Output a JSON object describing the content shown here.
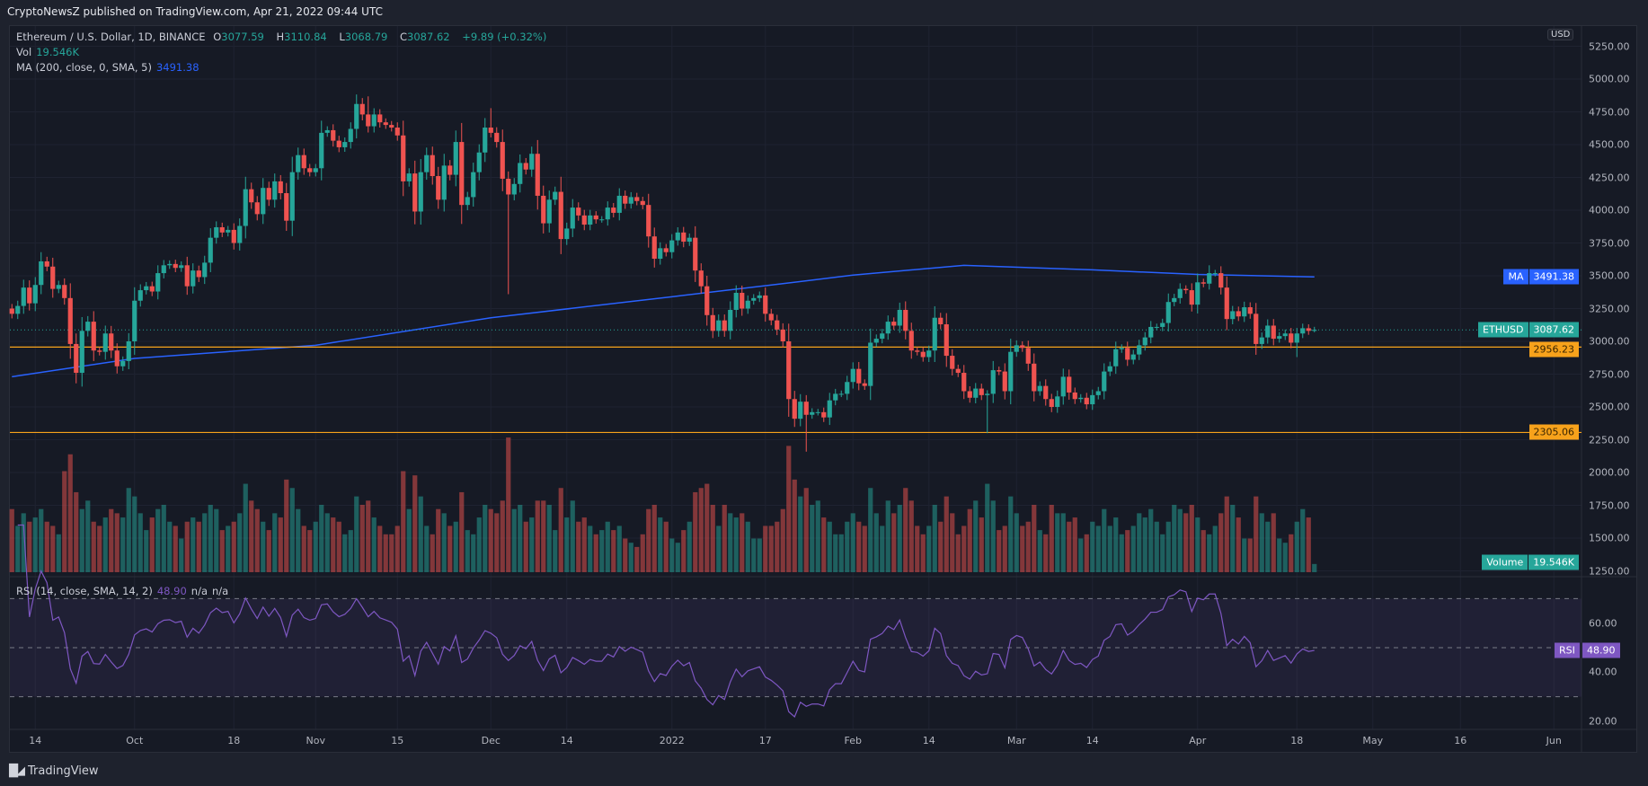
{
  "published": "CryptoNewsZ published on TradingView.com, Apr 21, 2022 09:44 UTC",
  "legend": {
    "symbol": "Ethereum / U.S. Dollar, 1D, BINANCE",
    "o_label": "O",
    "o": "3077.59",
    "h_label": "H",
    "h": "3110.84",
    "l_label": "L",
    "l": "3068.79",
    "c_label": "C",
    "c": "3087.62",
    "change": "+9.89 (+0.32%)",
    "vol_label": "Vol",
    "vol": "19.546K",
    "ma_label": "MA (200, close, 0, SMA, 5)",
    "ma": "3491.38",
    "rsi_label": "RSI (14, close, SMA, 14, 2)",
    "rsi": "48.90",
    "rsi_na1": "n/a",
    "rsi_na2": "n/a"
  },
  "currency_button": "USD",
  "badges": {
    "ma_label": "MA",
    "ma_value": "3491.38",
    "symbol_label": "ETHUSD",
    "last_value": "3087.62",
    "level1": "2956.23",
    "level2": "2305.06",
    "volume_label": "Volume",
    "volume_value": "19.546K",
    "rsi_label": "RSI",
    "rsi_value": "48.90"
  },
  "brand": "TradingView",
  "colors": {
    "up": "#26a69a",
    "down": "#ef5350",
    "ma": "#2962ff",
    "level": "#f7a21b",
    "rsi": "#7e57c2",
    "background": "#161a25"
  },
  "chart_data": [
    {
      "type": "candlestick",
      "title": "Ethereum / U.S. Dollar, 1D, BINANCE",
      "start_date": "2021-09-10",
      "first_open": 3250,
      "closes": [
        3210,
        3270,
        3410,
        3290,
        3430,
        3610,
        3570,
        3400,
        3430,
        3330,
        2980,
        2760,
        3080,
        3150,
        2930,
        2920,
        3060,
        2930,
        2810,
        2850,
        3000,
        3310,
        3390,
        3420,
        3380,
        3520,
        3580,
        3590,
        3560,
        3580,
        3420,
        3540,
        3490,
        3600,
        3790,
        3870,
        3830,
        3850,
        3750,
        3880,
        4160,
        4060,
        3970,
        4170,
        4080,
        4220,
        4130,
        3920,
        4290,
        4420,
        4320,
        4290,
        4320,
        4590,
        4610,
        4530,
        4480,
        4520,
        4620,
        4810,
        4730,
        4640,
        4730,
        4670,
        4650,
        4630,
        4570,
        4220,
        4280,
        3990,
        4290,
        4420,
        4260,
        4080,
        4340,
        4270,
        4520,
        4040,
        4100,
        4290,
        4440,
        4630,
        4590,
        4520,
        4240,
        4120,
        4200,
        4360,
        4310,
        4430,
        4110,
        3900,
        4080,
        4140,
        3780,
        3860,
        4020,
        3960,
        3890,
        3960,
        3930,
        3930,
        4020,
        3980,
        4110,
        4050,
        4100,
        4070,
        4040,
        3800,
        3630,
        3710,
        3680,
        3770,
        3830,
        3760,
        3790,
        3540,
        3420,
        3200,
        3080,
        3160,
        3080,
        3240,
        3370,
        3250,
        3310,
        3330,
        3350,
        3210,
        3160,
        3090,
        3000,
        2560,
        2410,
        2540,
        2440,
        2460,
        2460,
        2420,
        2550,
        2600,
        2600,
        2690,
        2790,
        2680,
        2660,
        2990,
        3020,
        3060,
        3150,
        3120,
        3240,
        3080,
        2930,
        2920,
        2880,
        2930,
        3180,
        3130,
        2890,
        2790,
        2760,
        2620,
        2570,
        2640,
        2590,
        2600,
        2780,
        2770,
        2620,
        2920,
        2970,
        2950,
        2830,
        2620,
        2660,
        2560,
        2500,
        2580,
        2730,
        2610,
        2560,
        2570,
        2520,
        2590,
        2620,
        2770,
        2810,
        2940,
        2950,
        2860,
        2900,
        2970,
        3030,
        3110,
        3110,
        3140,
        3300,
        3330,
        3400,
        3390,
        3280,
        3450,
        3440,
        3520,
        3520,
        3410,
        3170,
        3230,
        3190,
        3260,
        3210,
        2980,
        3030,
        3120,
        3020,
        3040,
        3060,
        2990,
        3060,
        3100,
        3080,
        3087.62
      ],
      "notable_wicks": [
        {
          "date": "2021-11-10",
          "high": 4868
        },
        {
          "date": "2021-12-01",
          "high": 4778
        },
        {
          "date": "2021-12-04",
          "low": 3360
        },
        {
          "date": "2022-01-24",
          "low": 2159
        },
        {
          "date": "2022-02-24",
          "low": 2300
        },
        {
          "date": "2022-04-03",
          "high": 3580
        },
        {
          "date": "2022-04-18",
          "low": 2880
        },
        {
          "date": "2022-04-21",
          "high": 3110.84,
          "low": 3068.79
        }
      ],
      "volume_k": [
        150,
        110,
        140,
        120,
        130,
        150,
        120,
        110,
        90,
        240,
        280,
        190,
        150,
        170,
        120,
        110,
        130,
        150,
        140,
        130,
        200,
        180,
        140,
        100,
        130,
        150,
        160,
        120,
        110,
        80,
        120,
        130,
        120,
        140,
        160,
        150,
        100,
        110,
        120,
        140,
        210,
        170,
        150,
        120,
        100,
        140,
        130,
        220,
        200,
        150,
        110,
        100,
        120,
        160,
        140,
        130,
        120,
        90,
        100,
        180,
        160,
        170,
        130,
        110,
        90,
        90,
        110,
        240,
        150,
        230,
        180,
        110,
        90,
        150,
        140,
        110,
        120,
        190,
        100,
        90,
        130,
        160,
        150,
        140,
        170,
        320,
        150,
        160,
        120,
        130,
        170,
        170,
        160,
        100,
        200,
        130,
        170,
        120,
        130,
        110,
        90,
        100,
        120,
        100,
        110,
        80,
        70,
        60,
        90,
        150,
        160,
        130,
        120,
        80,
        70,
        100,
        120,
        190,
        200,
        210,
        160,
        110,
        160,
        140,
        130,
        140,
        120,
        80,
        80,
        110,
        110,
        120,
        150,
        300,
        220,
        180,
        200,
        160,
        170,
        130,
        120,
        90,
        90,
        120,
        140,
        120,
        110,
        200,
        140,
        110,
        170,
        140,
        160,
        200,
        170,
        110,
        90,
        110,
        160,
        120,
        180,
        140,
        90,
        110,
        150,
        170,
        130,
        210,
        170,
        100,
        110,
        180,
        140,
        110,
        120,
        160,
        100,
        90,
        160,
        140,
        140,
        120,
        130,
        80,
        90,
        120,
        110,
        150,
        110,
        130,
        90,
        100,
        110,
        140,
        130,
        150,
        120,
        90,
        120,
        160,
        150,
        140,
        160,
        130,
        100,
        90,
        110,
        140,
        180,
        160,
        130,
        80,
        80,
        180,
        140,
        120,
        140,
        80,
        70,
        90,
        120,
        150,
        130,
        19.546
      ],
      "ma200": [
        {
          "date": "2021-09-10",
          "value": 2730
        },
        {
          "date": "2021-10-01",
          "value": 2870
        },
        {
          "date": "2021-11-01",
          "value": 2970
        },
        {
          "date": "2021-12-01",
          "value": 3180
        },
        {
          "date": "2022-01-01",
          "value": 3340
        },
        {
          "date": "2022-01-20",
          "value": 3440
        },
        {
          "date": "2022-02-01",
          "value": 3505
        },
        {
          "date": "2022-02-20",
          "value": 3580
        },
        {
          "date": "2022-03-14",
          "value": 3545
        },
        {
          "date": "2022-04-01",
          "value": 3510
        },
        {
          "date": "2022-04-21",
          "value": 3491.38
        }
      ],
      "horizontal_levels": [
        2956.23,
        2305.06
      ],
      "last_price": 3087.62,
      "y_ticks": [
        "5250.00",
        "5000.00",
        "4750.00",
        "4500.00",
        "4250.00",
        "4000.00",
        "3750.00",
        "3500.00",
        "3250.00",
        "3000.00",
        "2750.00",
        "2500.00",
        "2250.00",
        "2000.00",
        "1750.00",
        "1500.00",
        "1250.00"
      ],
      "ylim": [
        1250,
        5250
      ],
      "x_ticks": [
        {
          "label": "14",
          "date": "2021-09-14"
        },
        {
          "label": "Oct",
          "date": "2021-10-01"
        },
        {
          "label": "18",
          "date": "2021-10-18"
        },
        {
          "label": "Nov",
          "date": "2021-11-01"
        },
        {
          "label": "15",
          "date": "2021-11-15"
        },
        {
          "label": "Dec",
          "date": "2021-12-01"
        },
        {
          "label": "14",
          "date": "2021-12-14"
        },
        {
          "label": "2022",
          "date": "2022-01-01"
        },
        {
          "label": "17",
          "date": "2022-01-17"
        },
        {
          "label": "Feb",
          "date": "2022-02-01"
        },
        {
          "label": "14",
          "date": "2022-02-14"
        },
        {
          "label": "Mar",
          "date": "2022-03-01"
        },
        {
          "label": "14",
          "date": "2022-03-14"
        },
        {
          "label": "Apr",
          "date": "2022-04-01"
        },
        {
          "label": "18",
          "date": "2022-04-18"
        },
        {
          "label": "May",
          "date": "2022-05-01"
        },
        {
          "label": "16",
          "date": "2022-05-16"
        },
        {
          "label": "Jun",
          "date": "2022-06-01"
        }
      ],
      "grid": true
    },
    {
      "type": "line",
      "title": "RSI (14, close, SMA, 14, 2)",
      "last_value": 48.9,
      "bands": [
        30,
        50,
        70
      ],
      "y_ticks": [
        "60.00",
        "40.00",
        "20.00"
      ]
    }
  ]
}
